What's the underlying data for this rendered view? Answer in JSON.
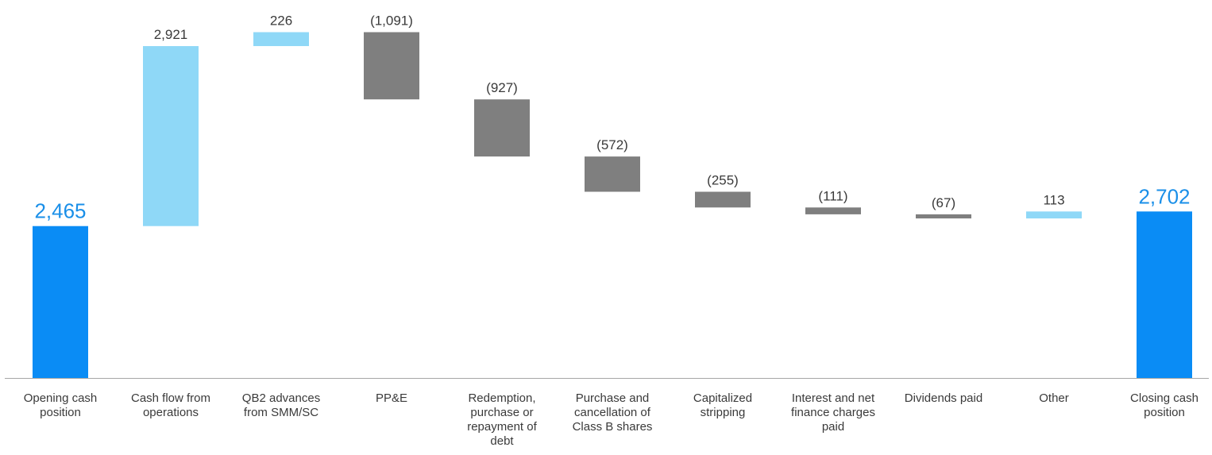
{
  "chart_data": {
    "type": "waterfall",
    "title": "",
    "xlabel": "",
    "ylabel": "",
    "ylim": [
      0,
      3600
    ],
    "grid": false,
    "legend": "none",
    "colors": {
      "total": "#0a8cf5",
      "increase": "#8fd8f7",
      "decrease": "#7f7f7f",
      "total_label": "#1a8fe8",
      "label": "#3a3a3a",
      "axis": "#a6a6a6"
    },
    "steps": [
      {
        "category": [
          "Opening cash",
          "position"
        ],
        "value": 2465,
        "label": "2,465",
        "kind": "total"
      },
      {
        "category": [
          "Cash flow from",
          "operations"
        ],
        "value": 2921,
        "label": "2,921",
        "kind": "increase"
      },
      {
        "category": [
          "QB2 advances",
          "from SMM/SC"
        ],
        "value": 226,
        "label": "226",
        "kind": "increase"
      },
      {
        "category": [
          "PP&E"
        ],
        "value": -1091,
        "label": "(1,091)",
        "kind": "decrease"
      },
      {
        "category": [
          "Redemption,",
          "purchase or",
          "repayment of",
          "debt"
        ],
        "value": -927,
        "label": "(927)",
        "kind": "decrease"
      },
      {
        "category": [
          "Purchase and",
          "cancellation of",
          "Class B shares"
        ],
        "value": -572,
        "label": "(572)",
        "kind": "decrease"
      },
      {
        "category": [
          "Capitalized",
          "stripping"
        ],
        "value": -255,
        "label": "(255)",
        "kind": "decrease"
      },
      {
        "category": [
          "Interest and net",
          "finance charges",
          "paid"
        ],
        "value": -111,
        "label": "(111)",
        "kind": "decrease"
      },
      {
        "category": [
          "Dividends paid"
        ],
        "value": -67,
        "label": "(67)",
        "kind": "decrease"
      },
      {
        "category": [
          "Other"
        ],
        "value": 113,
        "label": "113",
        "kind": "increase"
      },
      {
        "category": [
          "Closing cash",
          "position"
        ],
        "value": 2702,
        "label": "2,702",
        "kind": "total"
      }
    ]
  }
}
